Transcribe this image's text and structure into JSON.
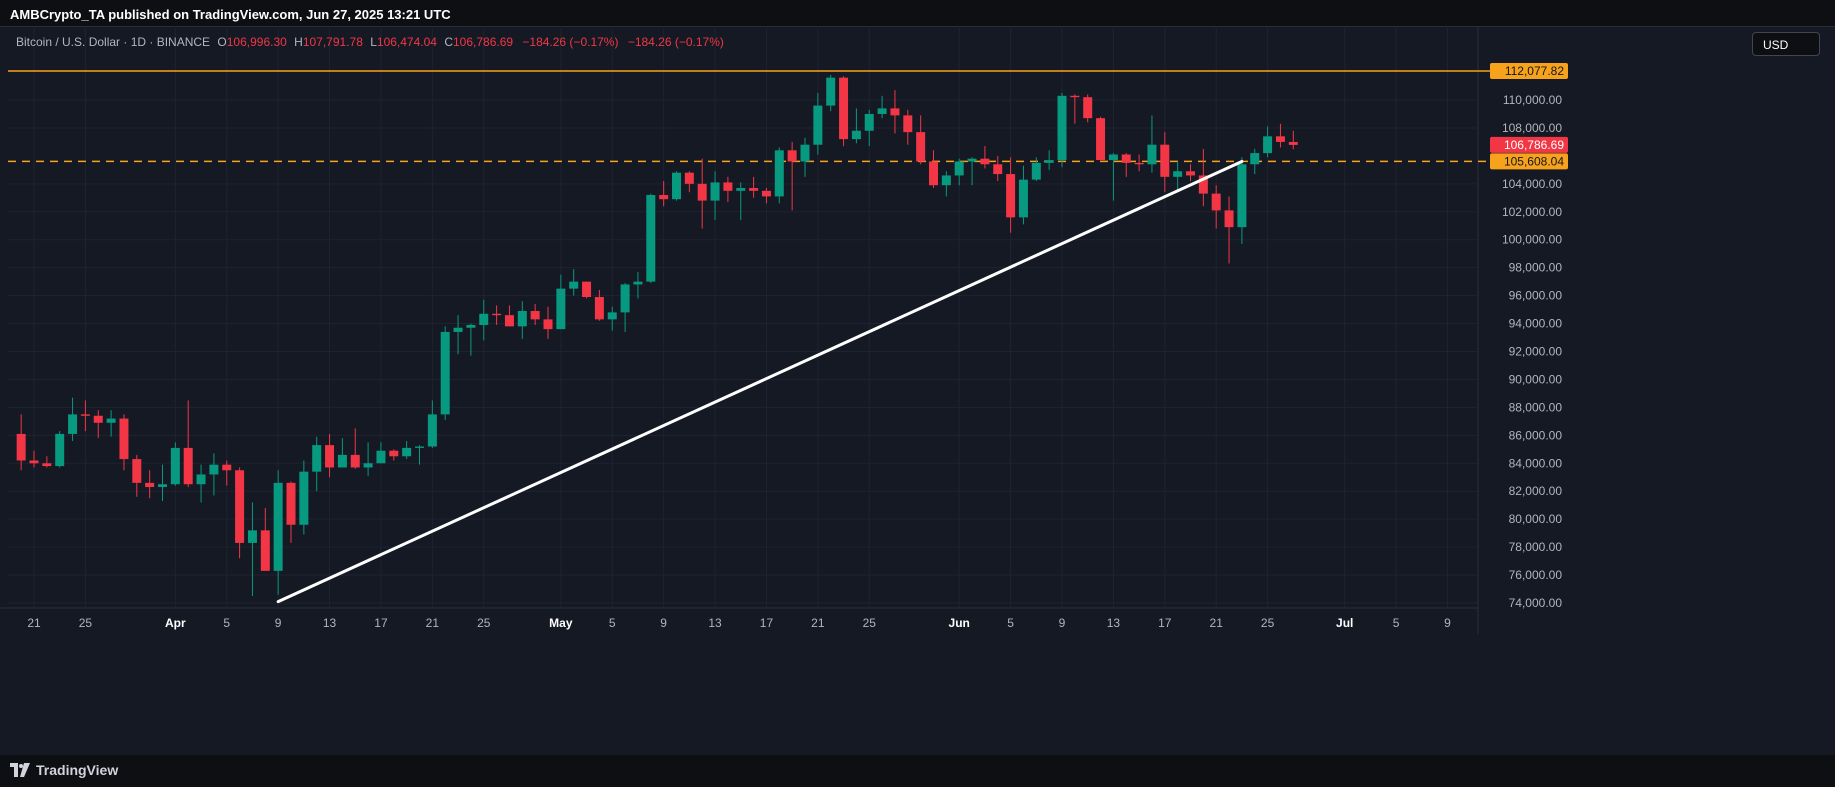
{
  "header": {
    "published_text": "AMBCrypto_TA published on TradingView.com, Jun 27, 2025 13:21 UTC"
  },
  "legend": {
    "symbol": "Bitcoin / U.S. Dollar · 1D · BINANCE",
    "o_label": "O",
    "o_value": "106,996.30",
    "h_label": "H",
    "h_value": "107,791.78",
    "l_label": "L",
    "l_value": "106,474.04",
    "c_label": "C",
    "c_value": "106,786.69",
    "change1": "−184.26 (−0.17%)",
    "change2": "−184.26 (−0.17%)"
  },
  "currency_button": "USD",
  "footer": {
    "brand": "TradingView"
  },
  "colors": {
    "background": "#151924",
    "up": "#089981",
    "down": "#f23645",
    "resistance": "#f7a21b",
    "trendline": "#ffffff",
    "grid": "#1f2330"
  },
  "chart_data": {
    "type": "candlestick",
    "symbol": "BTCUSD",
    "interval": "1D",
    "y_range": [
      72500,
      116000
    ],
    "y_ticks": [
      "74,000.00",
      "76,000.00",
      "78,000.00",
      "80,000.00",
      "82,000.00",
      "84,000.00",
      "86,000.00",
      "88,000.00",
      "90,000.00",
      "92,000.00",
      "94,000.00",
      "96,000.00",
      "98,000.00",
      "100,000.00",
      "102,000.00",
      "104,000.00",
      "108,000.00",
      "110,000.00"
    ],
    "x_ticks": [
      {
        "label": "21",
        "date": "2025-03-21",
        "major": false
      },
      {
        "label": "25",
        "date": "2025-03-25",
        "major": false
      },
      {
        "label": "Apr",
        "date": "2025-04-01",
        "major": true
      },
      {
        "label": "5",
        "date": "2025-04-05",
        "major": false
      },
      {
        "label": "9",
        "date": "2025-04-09",
        "major": false
      },
      {
        "label": "13",
        "date": "2025-04-13",
        "major": false
      },
      {
        "label": "17",
        "date": "2025-04-17",
        "major": false
      },
      {
        "label": "21",
        "date": "2025-04-21",
        "major": false
      },
      {
        "label": "25",
        "date": "2025-04-25",
        "major": false
      },
      {
        "label": "May",
        "date": "2025-05-01",
        "major": true
      },
      {
        "label": "5",
        "date": "2025-05-05",
        "major": false
      },
      {
        "label": "9",
        "date": "2025-05-09",
        "major": false
      },
      {
        "label": "13",
        "date": "2025-05-13",
        "major": false
      },
      {
        "label": "17",
        "date": "2025-05-17",
        "major": false
      },
      {
        "label": "21",
        "date": "2025-05-21",
        "major": false
      },
      {
        "label": "25",
        "date": "2025-05-25",
        "major": false
      },
      {
        "label": "Jun",
        "date": "2025-06-01",
        "major": true
      },
      {
        "label": "5",
        "date": "2025-06-05",
        "major": false
      },
      {
        "label": "9",
        "date": "2025-06-09",
        "major": false
      },
      {
        "label": "13",
        "date": "2025-06-13",
        "major": false
      },
      {
        "label": "17",
        "date": "2025-06-17",
        "major": false
      },
      {
        "label": "21",
        "date": "2025-06-21",
        "major": false
      },
      {
        "label": "25",
        "date": "2025-06-25",
        "major": false
      },
      {
        "label": "Jul",
        "date": "2025-07-01",
        "major": true
      },
      {
        "label": "5",
        "date": "2025-07-05",
        "major": false
      },
      {
        "label": "9",
        "date": "2025-07-09",
        "major": false
      }
    ],
    "horizontal_lines": [
      {
        "value": 112077.82,
        "label": "112,077.82",
        "style": "solid",
        "color": "#f7a21b"
      },
      {
        "value": 105608.04,
        "label": "105,608.04",
        "style": "dashed",
        "color": "#f7a21b"
      }
    ],
    "last_price": {
      "value": 106786.69,
      "label": "106,786.69",
      "color": "#f23645"
    },
    "trendline": {
      "start": {
        "date": "2025-04-09",
        "price": 74100
      },
      "end": {
        "date": "2025-06-23",
        "price": 105600
      }
    },
    "candles": [
      {
        "d": "2025-03-20",
        "o": 86100,
        "h": 87500,
        "l": 83500,
        "c": 84200
      },
      {
        "d": "2025-03-21",
        "o": 84200,
        "h": 84900,
        "l": 83700,
        "c": 84000
      },
      {
        "d": "2025-03-22",
        "o": 84000,
        "h": 84500,
        "l": 83700,
        "c": 83800
      },
      {
        "d": "2025-03-23",
        "o": 83800,
        "h": 86300,
        "l": 83700,
        "c": 86100
      },
      {
        "d": "2025-03-24",
        "o": 86100,
        "h": 88700,
        "l": 85600,
        "c": 87500
      },
      {
        "d": "2025-03-25",
        "o": 87500,
        "h": 88500,
        "l": 86300,
        "c": 87400
      },
      {
        "d": "2025-03-26",
        "o": 87400,
        "h": 87800,
        "l": 85800,
        "c": 86900
      },
      {
        "d": "2025-03-27",
        "o": 86900,
        "h": 87800,
        "l": 85900,
        "c": 87200
      },
      {
        "d": "2025-03-28",
        "o": 87200,
        "h": 87500,
        "l": 83500,
        "c": 84300
      },
      {
        "d": "2025-03-29",
        "o": 84300,
        "h": 84600,
        "l": 81600,
        "c": 82600
      },
      {
        "d": "2025-03-30",
        "o": 82600,
        "h": 83500,
        "l": 81500,
        "c": 82300
      },
      {
        "d": "2025-03-31",
        "o": 82300,
        "h": 83900,
        "l": 81300,
        "c": 82500
      },
      {
        "d": "2025-04-01",
        "o": 82500,
        "h": 85500,
        "l": 82400,
        "c": 85100
      },
      {
        "d": "2025-04-02",
        "o": 85100,
        "h": 88500,
        "l": 82300,
        "c": 82500
      },
      {
        "d": "2025-04-03",
        "o": 82500,
        "h": 83900,
        "l": 81200,
        "c": 83200
      },
      {
        "d": "2025-04-04",
        "o": 83200,
        "h": 84700,
        "l": 81700,
        "c": 83900
      },
      {
        "d": "2025-04-05",
        "o": 83900,
        "h": 84200,
        "l": 82400,
        "c": 83500
      },
      {
        "d": "2025-04-06",
        "o": 83500,
        "h": 83700,
        "l": 77200,
        "c": 78300
      },
      {
        "d": "2025-04-07",
        "o": 78300,
        "h": 81200,
        "l": 74500,
        "c": 79200
      },
      {
        "d": "2025-04-08",
        "o": 79200,
        "h": 80800,
        "l": 76300,
        "c": 76300
      },
      {
        "d": "2025-04-09",
        "o": 76300,
        "h": 83500,
        "l": 74600,
        "c": 82600
      },
      {
        "d": "2025-04-10",
        "o": 82600,
        "h": 82700,
        "l": 78300,
        "c": 79600
      },
      {
        "d": "2025-04-11",
        "o": 79600,
        "h": 84200,
        "l": 78900,
        "c": 83400
      },
      {
        "d": "2025-04-12",
        "o": 83400,
        "h": 85900,
        "l": 82000,
        "c": 85300
      },
      {
        "d": "2025-04-13",
        "o": 85300,
        "h": 86100,
        "l": 83000,
        "c": 83700
      },
      {
        "d": "2025-04-14",
        "o": 83700,
        "h": 85800,
        "l": 83700,
        "c": 84600
      },
      {
        "d": "2025-04-15",
        "o": 84600,
        "h": 86500,
        "l": 83600,
        "c": 83700
      },
      {
        "d": "2025-04-16",
        "o": 83700,
        "h": 85500,
        "l": 83100,
        "c": 84000
      },
      {
        "d": "2025-04-17",
        "o": 84000,
        "h": 85500,
        "l": 84000,
        "c": 84900
      },
      {
        "d": "2025-04-18",
        "o": 84900,
        "h": 85000,
        "l": 84200,
        "c": 84500
      },
      {
        "d": "2025-04-19",
        "o": 84500,
        "h": 85600,
        "l": 84300,
        "c": 85100
      },
      {
        "d": "2025-04-20",
        "o": 85100,
        "h": 85300,
        "l": 83900,
        "c": 85200
      },
      {
        "d": "2025-04-21",
        "o": 85200,
        "h": 88500,
        "l": 85100,
        "c": 87500
      },
      {
        "d": "2025-04-22",
        "o": 87500,
        "h": 93800,
        "l": 87100,
        "c": 93400
      },
      {
        "d": "2025-04-23",
        "o": 93400,
        "h": 94600,
        "l": 91800,
        "c": 93700
      },
      {
        "d": "2025-04-24",
        "o": 93700,
        "h": 94000,
        "l": 91700,
        "c": 93900
      },
      {
        "d": "2025-04-25",
        "o": 93900,
        "h": 95700,
        "l": 92800,
        "c": 94700
      },
      {
        "d": "2025-04-26",
        "o": 94700,
        "h": 95300,
        "l": 93900,
        "c": 94600
      },
      {
        "d": "2025-04-27",
        "o": 94600,
        "h": 95300,
        "l": 93800,
        "c": 93800
      },
      {
        "d": "2025-04-28",
        "o": 93800,
        "h": 95600,
        "l": 92900,
        "c": 94900
      },
      {
        "d": "2025-04-29",
        "o": 94900,
        "h": 95400,
        "l": 93900,
        "c": 94300
      },
      {
        "d": "2025-04-30",
        "o": 94300,
        "h": 95200,
        "l": 92900,
        "c": 93600
      },
      {
        "d": "2025-05-01",
        "o": 93600,
        "h": 97500,
        "l": 93600,
        "c": 96500
      },
      {
        "d": "2025-05-02",
        "o": 96500,
        "h": 97900,
        "l": 96000,
        "c": 97000
      },
      {
        "d": "2025-05-03",
        "o": 97000,
        "h": 97000,
        "l": 95800,
        "c": 95900
      },
      {
        "d": "2025-05-04",
        "o": 95900,
        "h": 96400,
        "l": 94200,
        "c": 94300
      },
      {
        "d": "2025-05-05",
        "o": 94300,
        "h": 95200,
        "l": 93500,
        "c": 94800
      },
      {
        "d": "2025-05-06",
        "o": 94800,
        "h": 96900,
        "l": 93400,
        "c": 96800
      },
      {
        "d": "2025-05-07",
        "o": 96800,
        "h": 97700,
        "l": 95800,
        "c": 97000
      },
      {
        "d": "2025-05-08",
        "o": 97000,
        "h": 103300,
        "l": 96900,
        "c": 103200
      },
      {
        "d": "2025-05-09",
        "o": 103200,
        "h": 104200,
        "l": 102400,
        "c": 102900
      },
      {
        "d": "2025-05-10",
        "o": 102900,
        "h": 104900,
        "l": 102800,
        "c": 104800
      },
      {
        "d": "2025-05-11",
        "o": 104800,
        "h": 104900,
        "l": 103400,
        "c": 104000
      },
      {
        "d": "2025-05-12",
        "o": 104000,
        "h": 105800,
        "l": 100800,
        "c": 102800
      },
      {
        "d": "2025-05-13",
        "o": 102800,
        "h": 104900,
        "l": 101400,
        "c": 104100
      },
      {
        "d": "2025-05-14",
        "o": 104100,
        "h": 104500,
        "l": 102700,
        "c": 103500
      },
      {
        "d": "2025-05-15",
        "o": 103500,
        "h": 104100,
        "l": 101400,
        "c": 103700
      },
      {
        "d": "2025-05-16",
        "o": 103700,
        "h": 104500,
        "l": 103000,
        "c": 103500
      },
      {
        "d": "2025-05-17",
        "o": 103500,
        "h": 103700,
        "l": 102600,
        "c": 103100
      },
      {
        "d": "2025-05-18",
        "o": 103100,
        "h": 106600,
        "l": 102600,
        "c": 106400
      },
      {
        "d": "2025-05-19",
        "o": 106400,
        "h": 107000,
        "l": 102100,
        "c": 105600
      },
      {
        "d": "2025-05-20",
        "o": 105600,
        "h": 107300,
        "l": 104500,
        "c": 106800
      },
      {
        "d": "2025-05-21",
        "o": 106800,
        "h": 110500,
        "l": 106100,
        "c": 109600
      },
      {
        "d": "2025-05-22",
        "o": 109600,
        "h": 111800,
        "l": 109200,
        "c": 111600
      },
      {
        "d": "2025-05-23",
        "o": 111600,
        "h": 111700,
        "l": 106700,
        "c": 107200
      },
      {
        "d": "2025-05-24",
        "o": 107200,
        "h": 109400,
        "l": 106900,
        "c": 107800
      },
      {
        "d": "2025-05-25",
        "o": 107800,
        "h": 109300,
        "l": 106700,
        "c": 109000
      },
      {
        "d": "2025-05-26",
        "o": 109000,
        "h": 110300,
        "l": 108700,
        "c": 109400
      },
      {
        "d": "2025-05-27",
        "o": 109400,
        "h": 110700,
        "l": 107600,
        "c": 108900
      },
      {
        "d": "2025-05-28",
        "o": 108900,
        "h": 109300,
        "l": 106800,
        "c": 107700
      },
      {
        "d": "2025-05-29",
        "o": 107700,
        "h": 108900,
        "l": 105400,
        "c": 105600
      },
      {
        "d": "2025-05-30",
        "o": 105600,
        "h": 106400,
        "l": 103700,
        "c": 103900
      },
      {
        "d": "2025-05-31",
        "o": 103900,
        "h": 104900,
        "l": 103100,
        "c": 104600
      },
      {
        "d": "2025-06-01",
        "o": 104600,
        "h": 105800,
        "l": 103900,
        "c": 105600
      },
      {
        "d": "2025-06-02",
        "o": 105600,
        "h": 105900,
        "l": 103900,
        "c": 105800
      },
      {
        "d": "2025-06-03",
        "o": 105800,
        "h": 106700,
        "l": 105100,
        "c": 105400
      },
      {
        "d": "2025-06-04",
        "o": 105400,
        "h": 106000,
        "l": 104200,
        "c": 104700
      },
      {
        "d": "2025-06-05",
        "o": 104700,
        "h": 105900,
        "l": 100500,
        "c": 101600
      },
      {
        "d": "2025-06-06",
        "o": 101600,
        "h": 105300,
        "l": 101100,
        "c": 104300
      },
      {
        "d": "2025-06-07",
        "o": 104300,
        "h": 105900,
        "l": 104200,
        "c": 105500
      },
      {
        "d": "2025-06-08",
        "o": 105500,
        "h": 106400,
        "l": 105000,
        "c": 105700
      },
      {
        "d": "2025-06-09",
        "o": 105700,
        "h": 110500,
        "l": 105200,
        "c": 110300
      },
      {
        "d": "2025-06-10",
        "o": 110300,
        "h": 110400,
        "l": 108300,
        "c": 110200
      },
      {
        "d": "2025-06-11",
        "o": 110200,
        "h": 110400,
        "l": 108400,
        "c": 108700
      },
      {
        "d": "2025-06-12",
        "o": 108700,
        "h": 108800,
        "l": 105700,
        "c": 105700
      },
      {
        "d": "2025-06-13",
        "o": 105700,
        "h": 106200,
        "l": 102800,
        "c": 106100
      },
      {
        "d": "2025-06-14",
        "o": 106100,
        "h": 106200,
        "l": 104500,
        "c": 105500
      },
      {
        "d": "2025-06-15",
        "o": 105500,
        "h": 106100,
        "l": 104900,
        "c": 105400
      },
      {
        "d": "2025-06-16",
        "o": 105400,
        "h": 108900,
        "l": 104800,
        "c": 106800
      },
      {
        "d": "2025-06-17",
        "o": 106800,
        "h": 107700,
        "l": 103400,
        "c": 104500
      },
      {
        "d": "2025-06-18",
        "o": 104500,
        "h": 105600,
        "l": 103500,
        "c": 104900
      },
      {
        "d": "2025-06-19",
        "o": 104900,
        "h": 105400,
        "l": 104200,
        "c": 104600
      },
      {
        "d": "2025-06-20",
        "o": 104600,
        "h": 106500,
        "l": 102400,
        "c": 103300
      },
      {
        "d": "2025-06-21",
        "o": 103300,
        "h": 103900,
        "l": 100800,
        "c": 102100
      },
      {
        "d": "2025-06-22",
        "o": 102100,
        "h": 103100,
        "l": 98300,
        "c": 100900
      },
      {
        "d": "2025-06-23",
        "o": 100900,
        "h": 105900,
        "l": 99700,
        "c": 105400
      },
      {
        "d": "2025-06-24",
        "o": 105400,
        "h": 106500,
        "l": 104700,
        "c": 106200
      },
      {
        "d": "2025-06-25",
        "o": 106200,
        "h": 108100,
        "l": 105900,
        "c": 107400
      },
      {
        "d": "2025-06-26",
        "o": 107400,
        "h": 108300,
        "l": 106600,
        "c": 107000
      },
      {
        "d": "2025-06-27",
        "o": 106996.3,
        "h": 107791.78,
        "l": 106474.04,
        "c": 106786.69
      }
    ]
  }
}
